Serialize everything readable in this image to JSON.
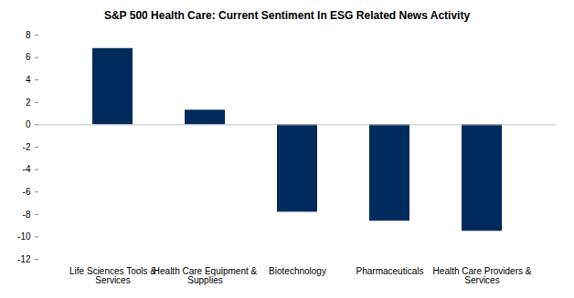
{
  "chart_data": {
    "type": "bar",
    "title": "S&P 500 Health Care: Current Sentiment In ESG Related News Activity",
    "categories": [
      "Life Sciences Tools & Services",
      "Health Care Equipment & Supplies",
      "Biotechnology",
      "Pharmaceuticals",
      "Health Care Providers & Services"
    ],
    "values": [
      6.8,
      1.3,
      -7.8,
      -8.6,
      -9.5
    ],
    "color": "#002b5c",
    "ylim": [
      -12,
      8
    ],
    "yticks": [
      -12,
      -10,
      -8,
      -6,
      -4,
      -2,
      0,
      2,
      4,
      6,
      8
    ],
    "grid": false
  }
}
